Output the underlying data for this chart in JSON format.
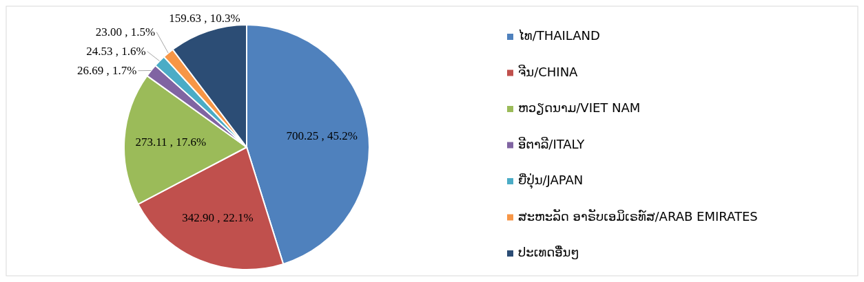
{
  "chart_data": {
    "type": "pie",
    "categories": [
      "ໄທ/THAILAND",
      "ຈີນ/CHINA",
      "ຫວຽດນາມ/VIET NAM",
      "ອີຕາລີ/ITALY",
      "ຍີ່ປຸ່ນ/JAPAN",
      "ສະຫະລັດ ອາຣັບເອມິເຣທ໌ສ/ARAB EMIRATES",
      "ປະເທດອື່ນໆ"
    ],
    "values": [
      700.25,
      342.9,
      273.11,
      26.69,
      24.53,
      23.0,
      159.63
    ],
    "value_labels": [
      "700.25 , 45.2%",
      "342.90 , 22.1%",
      "273.11 , 17.6%",
      "26.69 , 1.7%",
      "24.53 , 1.6%",
      "23.00 , 1.5%",
      "159.63 , 10.3%"
    ],
    "colors": [
      "#4f81bd",
      "#c0504d",
      "#9bbb59",
      "#8064a2",
      "#4bacc6",
      "#f79646",
      "#2c4d75"
    ],
    "legend": "right"
  }
}
